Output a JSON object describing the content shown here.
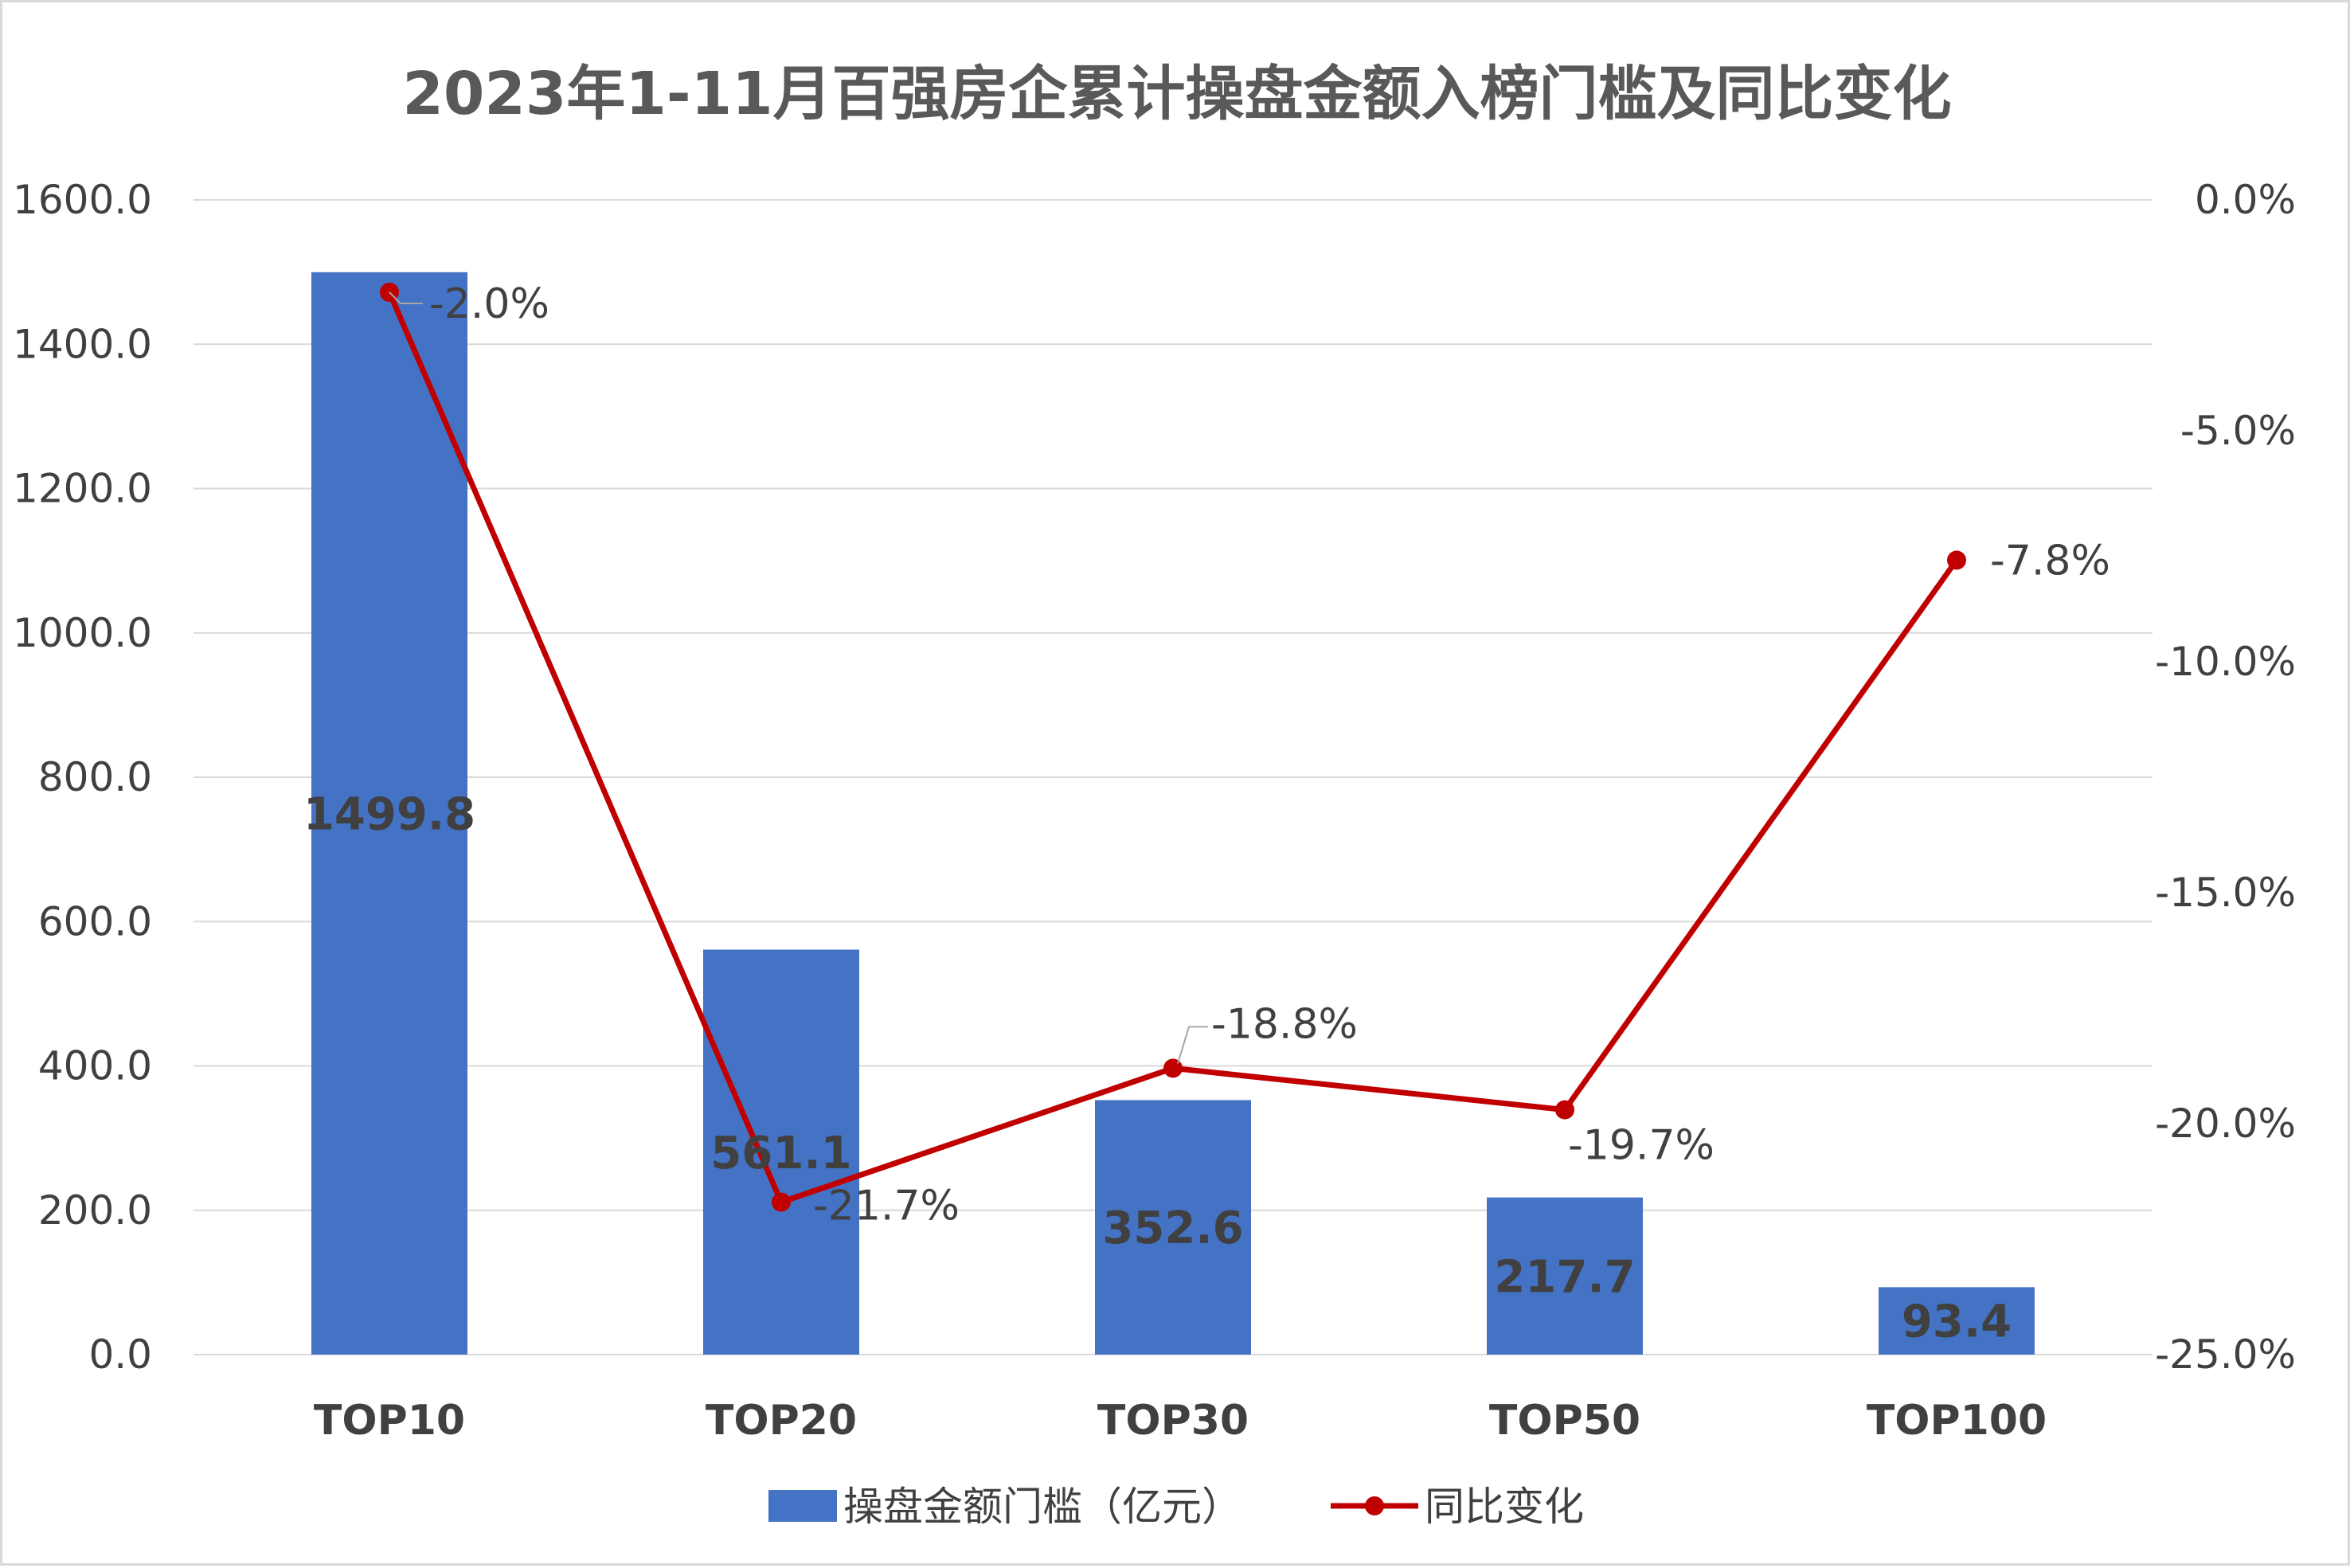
{
  "chart_data": {
    "type": "bar",
    "title": "2023年1-11月百强房企累计操盘金额入榜门槛及同比变化",
    "categories": [
      "TOP10",
      "TOP20",
      "TOP30",
      "TOP50",
      "TOP100"
    ],
    "series": [
      {
        "name": "操盘金额门槛（亿元）",
        "type": "bar",
        "axis": "left",
        "values": [
          1499.8,
          561.1,
          352.6,
          217.7,
          93.4
        ],
        "labels": [
          "1499.8",
          "561.1",
          "352.6",
          "217.7",
          "93.4"
        ],
        "color": "#4472c4"
      },
      {
        "name": "同比变化",
        "type": "line",
        "axis": "right",
        "values": [
          -2.0,
          -21.7,
          -18.8,
          -19.7,
          -7.8
        ],
        "labels": [
          "-2.0%",
          "-21.7%",
          "-18.8%",
          "-19.7%",
          "-7.8%"
        ],
        "color": "#c00000"
      }
    ],
    "y_left": {
      "ylim": [
        0,
        1600
      ],
      "ticks": [
        0,
        200,
        400,
        600,
        800,
        1000,
        1200,
        1400,
        1600
      ],
      "tick_labels": [
        "0.0",
        "200.0",
        "400.0",
        "600.0",
        "800.0",
        "1000.0",
        "1200.0",
        "1400.0",
        "1600.0"
      ]
    },
    "y_right": {
      "ylim": [
        -25,
        0
      ],
      "ticks": [
        -25,
        -20,
        -15,
        -10,
        -5,
        0
      ],
      "tick_labels": [
        "-25.0%",
        "-20.0%",
        "-15.0%",
        "-10.0%",
        "-5.0%",
        "0.0%"
      ]
    },
    "grid": true,
    "legend_position": "bottom",
    "colors": {
      "title": "#595959",
      "text": "#404040",
      "grid": "#d9d9d9",
      "leader": "#a6a6a6"
    }
  }
}
